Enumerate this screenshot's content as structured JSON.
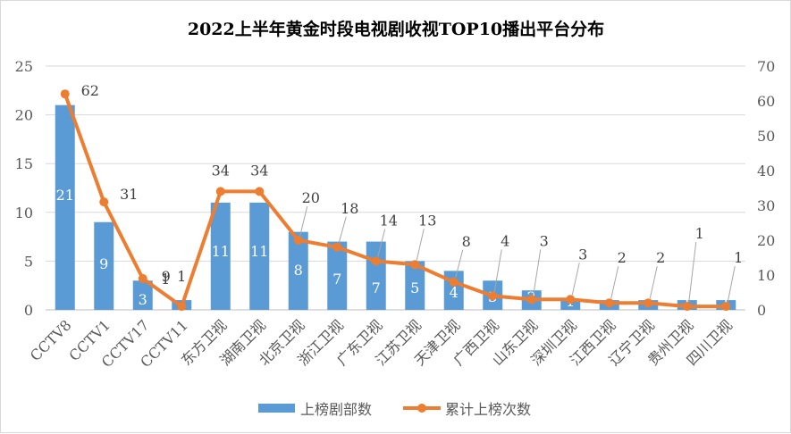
{
  "chart_data": {
    "type": "bar+line",
    "title": "2022上半年黄金时段电视剧收视TOP10播出平台分布",
    "categories": [
      "CCTV8",
      "CCTV1",
      "CCTV17",
      "CCTV11",
      "东方卫视",
      "湖南卫视",
      "北京卫视",
      "浙江卫视",
      "广东卫视",
      "江苏卫视",
      "天津卫视",
      "广西卫视",
      "山东卫视",
      "深圳卫视",
      "江西卫视",
      "辽宁卫视",
      "贵州卫视",
      "四川卫视"
    ],
    "series": [
      {
        "name": "上榜剧部数",
        "type": "bar",
        "axis": "left",
        "color": "#5b9bd5",
        "values": [
          21,
          9,
          3,
          1,
          11,
          11,
          8,
          7,
          7,
          5,
          4,
          3,
          2,
          1,
          1,
          1,
          1,
          1
        ]
      },
      {
        "name": "累计上榜次数",
        "type": "line",
        "axis": "right",
        "color": "#ed7d31",
        "values": [
          62,
          31,
          9,
          1,
          34,
          34,
          20,
          18,
          14,
          13,
          8,
          4,
          3,
          3,
          2,
          2,
          1,
          1
        ]
      }
    ],
    "y_left": {
      "min": 0,
      "max": 25,
      "ticks": [
        0,
        5,
        10,
        15,
        20,
        25
      ]
    },
    "y_right": {
      "min": 0,
      "max": 70,
      "ticks": [
        0,
        10,
        20,
        30,
        40,
        50,
        60,
        70
      ]
    },
    "gridlines": true,
    "legend_position": "bottom"
  }
}
